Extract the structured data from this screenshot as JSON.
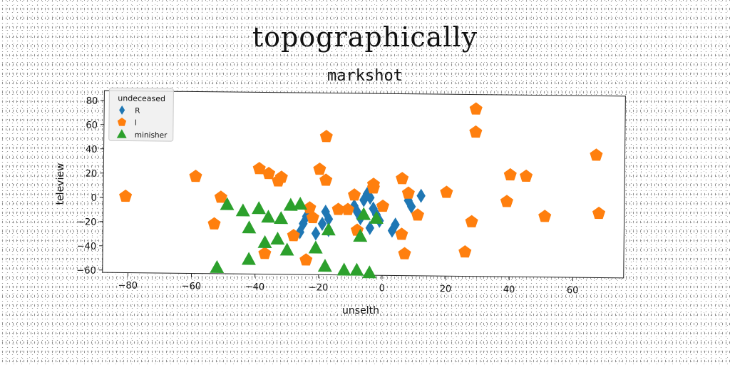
{
  "suptitle": "topographically",
  "chart_data": {
    "type": "scatter",
    "title": "markshot",
    "xlabel": "unselth",
    "ylabel": "teleview",
    "xlim": [
      -88,
      76
    ],
    "ylim": [
      -62,
      88
    ],
    "xticks": [
      -80,
      -60,
      -40,
      -20,
      0,
      20,
      40,
      60
    ],
    "yticks": [
      -60,
      -40,
      -20,
      0,
      20,
      40,
      60,
      80
    ],
    "grid": false,
    "legend": {
      "title": "undeceased",
      "placement": "top-left"
    },
    "series": [
      {
        "name": "R",
        "marker": "diamond",
        "color": "#1f77b4",
        "points": [
          [
            -23,
            -8
          ],
          [
            -24,
            -14
          ],
          [
            -25,
            -20
          ],
          [
            -26,
            -27
          ],
          [
            -21,
            -28
          ],
          [
            -18,
            -10
          ],
          [
            -17,
            -16
          ],
          [
            -19,
            -20
          ],
          [
            -17,
            -25
          ],
          [
            -9,
            -5
          ],
          [
            -8,
            -10
          ],
          [
            -7,
            -15
          ],
          [
            -6,
            0
          ],
          [
            -5,
            5
          ],
          [
            -4,
            2
          ],
          [
            -3,
            -7
          ],
          [
            -2,
            -12
          ],
          [
            -1,
            -17
          ],
          [
            -4,
            -23
          ],
          [
            3,
            -25
          ],
          [
            4,
            -20
          ],
          [
            8,
            0
          ],
          [
            9,
            -5
          ],
          [
            12,
            4
          ]
        ]
      },
      {
        "name": "l",
        "marker": "pentagon",
        "color": "#ff7f0e",
        "points": [
          [
            -81,
            1
          ],
          [
            -59,
            18
          ],
          [
            -51,
            1
          ],
          [
            -53,
            -21
          ],
          [
            -39,
            25
          ],
          [
            -36,
            21
          ],
          [
            -32,
            18
          ],
          [
            -33,
            15
          ],
          [
            -37,
            -45
          ],
          [
            -28,
            -30
          ],
          [
            -24,
            -50
          ],
          [
            -23,
            -7
          ],
          [
            -22,
            -15
          ],
          [
            -20,
            25
          ],
          [
            -18,
            16
          ],
          [
            -18,
            52
          ],
          [
            -14,
            -8
          ],
          [
            -11,
            -8
          ],
          [
            -9,
            4
          ],
          [
            -8,
            -25
          ],
          [
            -3,
            13
          ],
          [
            -3,
            10
          ],
          [
            0,
            -5
          ],
          [
            6,
            18
          ],
          [
            8,
            6
          ],
          [
            11,
            -12
          ],
          [
            6,
            -28
          ],
          [
            7,
            -44
          ],
          [
            20,
            7
          ],
          [
            26,
            -42
          ],
          [
            28,
            -17
          ],
          [
            29,
            57
          ],
          [
            29,
            76
          ],
          [
            39,
            0
          ],
          [
            40,
            22
          ],
          [
            45,
            21
          ],
          [
            51,
            -12
          ],
          [
            67,
            39
          ],
          [
            68,
            -9
          ]
        ]
      },
      {
        "name": "minisher",
        "marker": "triangle",
        "color": "#2ca02c",
        "points": [
          [
            -52,
            -57
          ],
          [
            -49,
            -5
          ],
          [
            -44,
            -10
          ],
          [
            -42,
            -50
          ],
          [
            -42,
            -24
          ],
          [
            -39,
            -8
          ],
          [
            -37,
            -36
          ],
          [
            -36,
            -15
          ],
          [
            -33,
            -33
          ],
          [
            -32,
            -16
          ],
          [
            -30,
            -42
          ],
          [
            -29,
            -5
          ],
          [
            -26,
            -4
          ],
          [
            -21,
            -40
          ],
          [
            -18,
            -55
          ],
          [
            -17,
            -25
          ],
          [
            -12,
            -58
          ],
          [
            -8,
            -58
          ],
          [
            -7,
            -30
          ],
          [
            -6,
            -12
          ],
          [
            -4,
            -60
          ],
          [
            -2,
            -15
          ]
        ]
      }
    ]
  }
}
